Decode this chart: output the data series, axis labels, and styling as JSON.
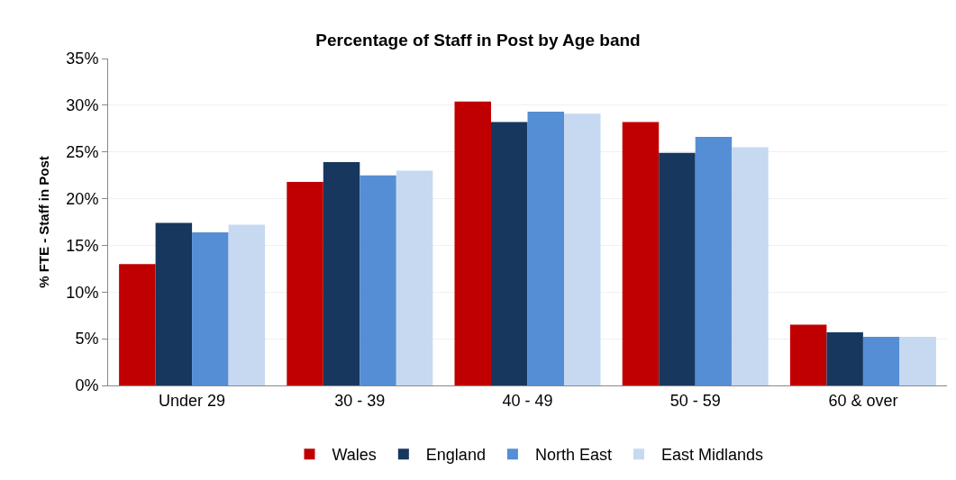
{
  "chart_data": {
    "type": "bar",
    "title": "Percentage of Staff in Post by Age band",
    "ylabel": "% FTE - Staff in Post",
    "categories": [
      "Under 29",
      "30 - 39",
      "40 - 49",
      "50 - 59",
      "60 & over"
    ],
    "series": [
      {
        "name": "Wales",
        "color": "#c00000",
        "values": [
          13.0,
          21.8,
          30.4,
          28.2,
          6.5
        ]
      },
      {
        "name": "England",
        "color": "#17375e",
        "values": [
          17.4,
          23.9,
          28.2,
          24.9,
          5.7
        ]
      },
      {
        "name": "North East",
        "color": "#558ed5",
        "values": [
          16.4,
          22.5,
          29.3,
          26.6,
          5.2
        ]
      },
      {
        "name": "East Midlands",
        "color": "#c6d9f1",
        "values": [
          17.2,
          23.0,
          29.1,
          25.5,
          5.2
        ]
      }
    ],
    "ylim": [
      0,
      35
    ],
    "yticks": [
      {
        "value": 0,
        "label": "0%"
      },
      {
        "value": 5,
        "label": "5%"
      },
      {
        "value": 10,
        "label": "10%"
      },
      {
        "value": 15,
        "label": "15%"
      },
      {
        "value": 20,
        "label": "20%"
      },
      {
        "value": 25,
        "label": "25%"
      },
      {
        "value": 30,
        "label": "30%"
      },
      {
        "value": 35,
        "label": "35%"
      }
    ],
    "grid": "y",
    "legend": "bottom"
  }
}
